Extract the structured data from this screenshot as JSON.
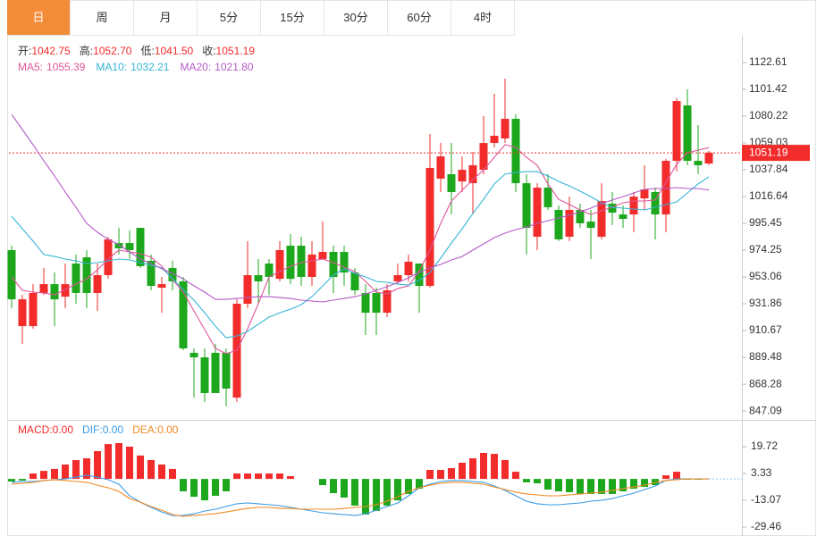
{
  "tabs": [
    "日",
    "周",
    "月",
    "5分",
    "15分",
    "30分",
    "60分",
    "4时"
  ],
  "active_tab": 0,
  "chart_data": [
    {
      "type": "candlestick",
      "info": [
        {
          "label": "开:",
          "value": "1042.75"
        },
        {
          "label": "高:",
          "value": "1052.70"
        },
        {
          "label": "低:",
          "value": "1041.50"
        },
        {
          "label": "收:",
          "value": "1051.19"
        }
      ],
      "up_color": "#f22b2b",
      "down_color": "#1ca71c",
      "info_label_color": "#333333",
      "info_value_color": "#f22b2b",
      "candles": {
        "open": [
          974.3,
          914.2,
          914.2,
          940.4,
          947.4,
          937.5,
          963.7,
          968.6,
          940.4,
          954.5,
          979.9,
          979.9,
          991.9,
          965.8,
          944.6,
          960.2,
          949.6,
          893.1,
          889.5,
          893.1,
          893.1,
          857.7,
          931.9,
          954.5,
          963.7,
          951.6,
          977.8,
          977.8,
          953.1,
          967.2,
          972.9,
          972.9,
          956.6,
          940.4,
          940.4,
          924.8,
          949.6,
          954.5,
          963.7,
          946.0,
          1030.8,
          1034.3,
          1028.6,
          1027.2,
          1037.8,
          1059.0,
          1062.6,
          1078.1,
          1027.2,
          984.9,
          1023.7,
          1006.1,
          984.9,
          1006.1,
          996.9,
          984.9,
          1011.0,
          1002.5,
          1002.5,
          1015.2,
          1020.2,
          1002.5,
          1044.9,
          1088.7,
          1044.9,
          1042.75
        ],
        "high": [
          977.8,
          938.9,
          947.4,
          960.2,
          956.6,
          963.7,
          970.8,
          974.3,
          963.7,
          984.9,
          991.9,
          989.8,
          991.9,
          970.8,
          953.1,
          965.8,
          953.1,
          896.6,
          896.6,
          900.1,
          896.6,
          935.4,
          981.4,
          967.2,
          967.2,
          981.4,
          987.0,
          984.9,
          981.4,
          996.9,
          977.8,
          977.8,
          960.2,
          947.4,
          944.6,
          947.4,
          963.7,
          970.8,
          963.7,
          1066.1,
          1059.0,
          1059.0,
          1048.4,
          1052.0,
          1080.2,
          1097.9,
          1109.9,
          1081.6,
          1034.3,
          1027.2,
          1034.3,
          1009.6,
          1016.6,
          1011.0,
          1006.1,
          1027.2,
          1020.2,
          1009.6,
          1020.2,
          1041.4,
          1023.7,
          1046.3,
          1094.4,
          1101.4,
          1073.2,
          1052.7
        ],
        "low": [
          928.4,
          900.1,
          912.1,
          938.9,
          914.2,
          928.4,
          931.9,
          928.4,
          926.2,
          951.6,
          970.8,
          967.2,
          960.2,
          942.5,
          924.8,
          942.5,
          895.2,
          857.7,
          854.2,
          861.3,
          850.7,
          854.2,
          928.4,
          931.9,
          938.9,
          949.6,
          947.4,
          946.0,
          946.0,
          967.2,
          940.4,
          946.0,
          938.9,
          907.2,
          907.2,
          921.3,
          947.4,
          949.6,
          924.8,
          944.6,
          1020.2,
          1002.5,
          1020.2,
          1002.5,
          1034.3,
          1055.5,
          1059.0,
          1020.2,
          970.8,
          974.3,
          1006.1,
          981.4,
          981.4,
          991.9,
          967.2,
          982.8,
          994.1,
          991.9,
          988.4,
          1006.1,
          982.8,
          988.4,
          1036.4,
          1041.4,
          1034.3,
          1041.5
        ],
        "close": [
          935.4,
          935.4,
          940.4,
          947.4,
          935.4,
          947.4,
          940.4,
          940.4,
          954.5,
          982.8,
          975.7,
          974.3,
          961.6,
          946.0,
          947.4,
          949.6,
          896.6,
          889.5,
          861.3,
          861.3,
          864.8,
          931.9,
          954.5,
          949.6,
          953.1,
          974.3,
          951.6,
          953.1,
          970.8,
          972.9,
          953.1,
          956.6,
          942.5,
          924.8,
          924.8,
          942.5,
          954.5,
          965.1,
          946.0,
          1039.3,
          1048.4,
          1020.2,
          1037.8,
          1041.4,
          1059.0,
          1064.7,
          1078.1,
          1027.2,
          991.9,
          1023.7,
          1008.2,
          982.8,
          1006.1,
          995.5,
          991.9,
          1013.1,
          1003.9,
          999.0,
          1016.6,
          1022.3,
          1002.5,
          1044.9,
          1092.2,
          1044.9,
          1041.4,
          1051.19
        ]
      },
      "series": [
        {
          "name": "MA5:",
          "value_label": "1055.39",
          "color": "#e0559a",
          "values": [
            953.1,
            942.5,
            941.1,
            940.4,
            938.9,
            943.2,
            947.4,
            951.6,
            958.7,
            967.2,
            974.3,
            972.9,
            971.5,
            968.6,
            961.6,
            951.0,
            941.1,
            926.2,
            911.4,
            896.6,
            892.4,
            895.2,
            912.1,
            931.9,
            953.1,
            957.3,
            961.6,
            964.4,
            965.8,
            967.2,
            964.4,
            960.9,
            957.3,
            949.6,
            941.1,
            939.7,
            943.9,
            946.0,
            958.0,
            974.3,
            995.5,
            1013.1,
            1021.6,
            1030.0,
            1037.8,
            1047.7,
            1057.6,
            1055.5,
            1047.7,
            1041.4,
            1026.6,
            1014.5,
            1010.3,
            1006.1,
            1002.5,
            1005.4,
            1008.2,
            1011.7,
            1013.1,
            1013.1,
            1013.9,
            1027.9,
            1042.1,
            1051.3,
            1053.3,
            1055.39
          ]
        },
        {
          "name": "MA10:",
          "value_label": "1032.21",
          "color": "#35b5d6",
          "values": [
            1001.1,
            991.2,
            981.4,
            970.8,
            969.3,
            967.2,
            965.8,
            963.7,
            964.4,
            965.8,
            967.2,
            966.5,
            964.4,
            962.3,
            960.2,
            951.6,
            943.2,
            934.7,
            924.8,
            914.2,
            905.0,
            906.5,
            910.0,
            915.7,
            921.3,
            924.8,
            927.6,
            931.2,
            937.5,
            946.0,
            954.5,
            959.5,
            955.9,
            953.1,
            949.6,
            948.8,
            947.4,
            946.7,
            950.3,
            956.6,
            967.9,
            979.9,
            991.2,
            1003.2,
            1014.5,
            1026.6,
            1034.3,
            1035.7,
            1036.4,
            1036.4,
            1032.9,
            1028.6,
            1025.1,
            1020.9,
            1016.6,
            1011.7,
            1008.2,
            1007.5,
            1006.8,
            1006.1,
            1008.2,
            1010.3,
            1012.4,
            1019.5,
            1026.6,
            1032.21
          ]
        },
        {
          "name": "MA20:",
          "value_label": "1021.80",
          "color": "#b35ac6",
          "values": [
            1081.6,
            1069.6,
            1057.6,
            1044.9,
            1032.9,
            1020.2,
            1008.2,
            995.5,
            988.4,
            982.8,
            978.6,
            972.9,
            967.2,
            963.7,
            959.5,
            955.9,
            951.6,
            946.0,
            941.1,
            935.4,
            935.4,
            936.1,
            936.8,
            937.5,
            937.5,
            936.8,
            936.1,
            934.7,
            934.0,
            933.3,
            934.7,
            936.1,
            937.5,
            939.6,
            942.5,
            945.3,
            948.8,
            952.4,
            956.6,
            960.2,
            963.0,
            966.5,
            969.3,
            974.3,
            979.2,
            984.2,
            987.7,
            990.5,
            992.6,
            995.5,
            997.6,
            999.7,
            1001.8,
            1004.6,
            1007.5,
            1011.0,
            1013.9,
            1016.6,
            1019.5,
            1022.3,
            1023.0,
            1023.0,
            1023.7,
            1023.0,
            1023.0,
            1021.8
          ]
        }
      ],
      "ylim": [
        840.09,
        1138.85
      ],
      "yticks": [
        1122.61,
        1101.42,
        1080.22,
        1059.03,
        1037.84,
        1016.64,
        995.45,
        974.25,
        953.06,
        931.86,
        910.67,
        889.48,
        868.28,
        847.09
      ]
    },
    {
      "type": "macd",
      "histogram": {
        "name": "MACD:",
        "value_label": "0.00",
        "color": "#f22b2b",
        "up_color": "#f22b2b",
        "down_color": "#1ca71c",
        "values": [
          -1.6,
          -1.0,
          3.3,
          4.9,
          6.1,
          8.8,
          11.5,
          12.6,
          17.0,
          21.3,
          21.9,
          19.7,
          14.3,
          11.5,
          8.8,
          6.1,
          -7.6,
          -10.9,
          -13.1,
          -10.3,
          -7.6,
          3.3,
          3.3,
          3.3,
          3.3,
          3.3,
          1.7,
          0.0,
          0.0,
          -3.8,
          -8.7,
          -11.4,
          -16.3,
          -21.8,
          -19.6,
          -16.3,
          -13.1,
          -9.2,
          -6.0,
          5.5,
          5.5,
          6.6,
          9.9,
          12.6,
          15.9,
          15.3,
          11.5,
          4.4,
          -2.1,
          -2.7,
          -6.5,
          -7.6,
          -8.1,
          -9.2,
          -9.2,
          -9.2,
          -9.2,
          -7.6,
          -6.0,
          -4.9,
          -3.8,
          2.2,
          4.4,
          -0.5,
          -0.5,
          0.0
        ]
      },
      "series": [
        {
          "name": "DIF:",
          "value_label": "0.00",
          "color": "#3a9be6",
          "values": [
            -2.1,
            -1.6,
            -1.6,
            -1.0,
            -0.5,
            0.0,
            1.1,
            2.2,
            1.1,
            -0.5,
            -3.2,
            -10.3,
            -14.2,
            -17.4,
            -20.2,
            -22.4,
            -22.4,
            -21.3,
            -19.6,
            -18.5,
            -16.9,
            -15.2,
            -14.7,
            -15.2,
            -15.8,
            -16.3,
            -17.4,
            -18.5,
            -19.6,
            -20.7,
            -21.3,
            -21.8,
            -22.4,
            -21.3,
            -19.1,
            -16.9,
            -14.7,
            -10.3,
            -5.4,
            -3.2,
            -1.6,
            -1.0,
            -1.0,
            -1.6,
            -2.1,
            -4.3,
            -7.0,
            -10.3,
            -13.6,
            -15.2,
            -15.8,
            -15.8,
            -15.2,
            -14.7,
            -13.6,
            -13.1,
            -12.0,
            -10.3,
            -8.7,
            -6.5,
            -4.3,
            -1.0,
            0.0,
            0.0,
            0.0,
            0.0
          ]
        },
        {
          "name": "DEA:",
          "value_label": "0.00",
          "color": "#f08a24",
          "values": [
            -3.2,
            -2.7,
            -2.1,
            -1.0,
            -0.5,
            -1.0,
            -1.6,
            -2.1,
            -3.8,
            -5.4,
            -7.6,
            -12.0,
            -14.2,
            -16.9,
            -19.1,
            -21.8,
            -22.9,
            -22.4,
            -21.8,
            -21.3,
            -20.2,
            -19.1,
            -18.0,
            -17.4,
            -17.4,
            -18.0,
            -18.0,
            -18.5,
            -18.5,
            -18.5,
            -18.5,
            -18.0,
            -17.4,
            -16.9,
            -15.8,
            -13.6,
            -10.9,
            -7.6,
            -5.4,
            -3.8,
            -2.7,
            -2.1,
            -2.1,
            -2.7,
            -3.2,
            -4.9,
            -6.5,
            -8.1,
            -9.2,
            -9.8,
            -10.3,
            -10.3,
            -9.8,
            -9.2,
            -8.7,
            -8.1,
            -7.0,
            -6.0,
            -4.9,
            -3.8,
            -2.1,
            -1.0,
            -0.5,
            0.0,
            0.0,
            0.0
          ]
        }
      ],
      "ylim": [
        -33.8,
        35.0
      ],
      "yticks": [
        19.72,
        3.33,
        -13.07,
        -29.46
      ]
    }
  ]
}
